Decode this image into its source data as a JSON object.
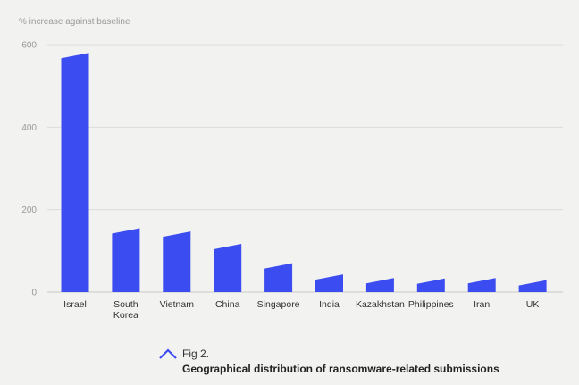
{
  "chart_data": {
    "type": "bar",
    "title": "",
    "xlabel": "",
    "ylabel": "% increase against baseline",
    "ylim": [
      0,
      600
    ],
    "yticks": [
      0,
      200,
      400,
      600
    ],
    "categories": [
      "Israel",
      "South Korea",
      "Vietnam",
      "China",
      "Singapore",
      "India",
      "Kazakhstan",
      "Philippines",
      "Iran",
      "UK"
    ],
    "category_lines": [
      [
        "Israel"
      ],
      [
        "South",
        "Korea"
      ],
      [
        "Vietnam"
      ],
      [
        "China"
      ],
      [
        "Singapore"
      ],
      [
        "India"
      ],
      [
        "Kazakhstan"
      ],
      [
        "Philippines"
      ],
      [
        "Iran"
      ],
      [
        "UK"
      ]
    ],
    "values": [
      580,
      155,
      147,
      117,
      70,
      43,
      34,
      33,
      34,
      29
    ],
    "grid": true,
    "bar_color": "#3b4cf0"
  },
  "caption": {
    "fig_label": "Fig 2.",
    "description": "Geographical distribution of ransomware-related submissions",
    "icon": "chevron-up-icon",
    "icon_color": "#3b4cf0"
  }
}
